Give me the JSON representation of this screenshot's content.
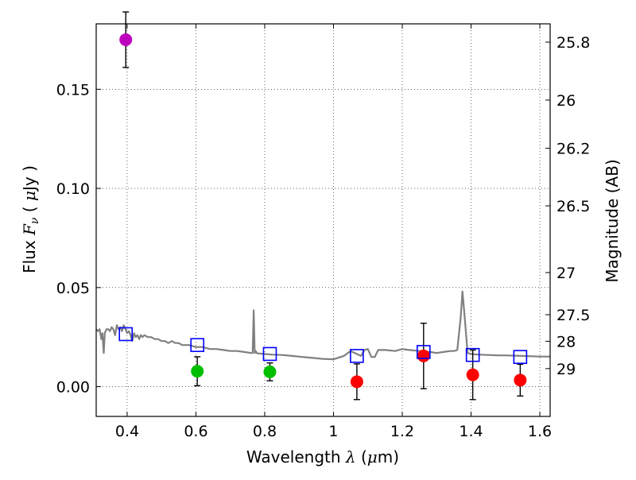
{
  "chart_data": {
    "type": "scatter",
    "title": "",
    "xlabel_text": "Wavelength",
    "xlabel_symbol": "λ",
    "xlabel_unit_open": "(",
    "xlabel_unit_mu": "μ",
    "xlabel_unit_rest": "m)",
    "ylabel_text": "Flux",
    "ylabel_symbol": "F",
    "ylabel_subscript": "ν",
    "ylabel_unit_open": "(",
    "ylabel_unit_mu": "μ",
    "ylabel_unit_rest": "Jy",
    "ylabel_unit_close": ")",
    "y2label": "Magnitude (AB)",
    "xlim": [
      0.31,
      1.63
    ],
    "ylim": [
      -0.015,
      0.183
    ],
    "x_ticks": [
      0.4,
      0.6,
      0.8,
      1.0,
      1.2,
      1.4,
      1.6
    ],
    "x_tick_labels": [
      "0.4",
      "0.6",
      "0.8",
      "1",
      "1.2",
      "1.4",
      "1.6"
    ],
    "y_ticks": [
      0.0,
      0.05,
      0.1,
      0.15
    ],
    "y_tick_labels": [
      "0.00",
      "0.05",
      "0.10",
      "0.15"
    ],
    "mag_ticks": [
      25.8,
      26,
      26.2,
      26.5,
      27,
      27.5,
      28,
      29
    ],
    "mag_tick_labels": [
      "25.8",
      "26",
      "26.2",
      "26.5",
      "27",
      "27.5",
      "28",
      "29"
    ],
    "grid": true,
    "observed": [
      {
        "x": 0.396,
        "y": 0.175,
        "err": 0.014,
        "color": "#bf00bf"
      },
      {
        "x": 0.604,
        "y": 0.0078,
        "err": 0.0073,
        "color": "#00bf00"
      },
      {
        "x": 0.815,
        "y": 0.0075,
        "err": 0.0045,
        "color": "#00bf00"
      },
      {
        "x": 1.068,
        "y": 0.0025,
        "err": 0.009,
        "color": "#ff0000"
      },
      {
        "x": 1.262,
        "y": 0.0155,
        "err": 0.0165,
        "color": "#ff0000"
      },
      {
        "x": 1.405,
        "y": 0.006,
        "err": 0.0125,
        "color": "#ff0000"
      },
      {
        "x": 1.543,
        "y": 0.0033,
        "err": 0.008,
        "color": "#ff0000"
      }
    ],
    "model_photometry": {
      "color": "#0000ff",
      "x": [
        0.396,
        0.604,
        0.815,
        1.068,
        1.262,
        1.405,
        1.543
      ],
      "y": [
        0.0265,
        0.021,
        0.0165,
        0.0155,
        0.0175,
        0.016,
        0.015
      ]
    },
    "model_spectrum": {
      "color": "#808080",
      "x": [
        0.31,
        0.315,
        0.32,
        0.325,
        0.328,
        0.332,
        0.335,
        0.34,
        0.345,
        0.35,
        0.355,
        0.36,
        0.365,
        0.37,
        0.375,
        0.38,
        0.385,
        0.39,
        0.395,
        0.4,
        0.405,
        0.41,
        0.415,
        0.42,
        0.425,
        0.43,
        0.435,
        0.44,
        0.445,
        0.45,
        0.46,
        0.47,
        0.48,
        0.49,
        0.5,
        0.51,
        0.52,
        0.53,
        0.54,
        0.55,
        0.56,
        0.58,
        0.6,
        0.62,
        0.64,
        0.66,
        0.68,
        0.7,
        0.72,
        0.74,
        0.76,
        0.765,
        0.768,
        0.771,
        0.774,
        0.777,
        0.78,
        0.8,
        0.82,
        0.85,
        0.88,
        0.91,
        0.94,
        0.97,
        1.0,
        1.03,
        1.05,
        1.08,
        1.09,
        1.1,
        1.11,
        1.12,
        1.13,
        1.15,
        1.18,
        1.2,
        1.22,
        1.25,
        1.28,
        1.3,
        1.32,
        1.34,
        1.35,
        1.36,
        1.37,
        1.375,
        1.38,
        1.39,
        1.4,
        1.42,
        1.45,
        1.48,
        1.5,
        1.55,
        1.6,
        1.63
      ],
      "y": [
        0.029,
        0.028,
        0.029,
        0.024,
        0.027,
        0.017,
        0.027,
        0.029,
        0.029,
        0.028,
        0.03,
        0.029,
        0.026,
        0.031,
        0.029,
        0.03,
        0.028,
        0.031,
        0.029,
        0.027,
        0.028,
        0.026,
        0.023,
        0.027,
        0.025,
        0.026,
        0.024,
        0.026,
        0.025,
        0.026,
        0.025,
        0.025,
        0.024,
        0.024,
        0.023,
        0.023,
        0.022,
        0.023,
        0.022,
        0.022,
        0.021,
        0.021,
        0.02,
        0.02,
        0.019,
        0.019,
        0.0185,
        0.018,
        0.018,
        0.0175,
        0.017,
        0.017,
        0.0385,
        0.017,
        0.018,
        0.017,
        0.0168,
        0.0165,
        0.0162,
        0.016,
        0.0155,
        0.015,
        0.0145,
        0.014,
        0.0138,
        0.0155,
        0.018,
        0.0155,
        0.0185,
        0.019,
        0.015,
        0.015,
        0.0185,
        0.0185,
        0.018,
        0.019,
        0.0185,
        0.018,
        0.0175,
        0.017,
        0.0175,
        0.018,
        0.018,
        0.0185,
        0.035,
        0.048,
        0.038,
        0.017,
        0.0165,
        0.0162,
        0.016,
        0.0158,
        0.0158,
        0.0155,
        0.0152,
        0.0152
      ]
    }
  }
}
